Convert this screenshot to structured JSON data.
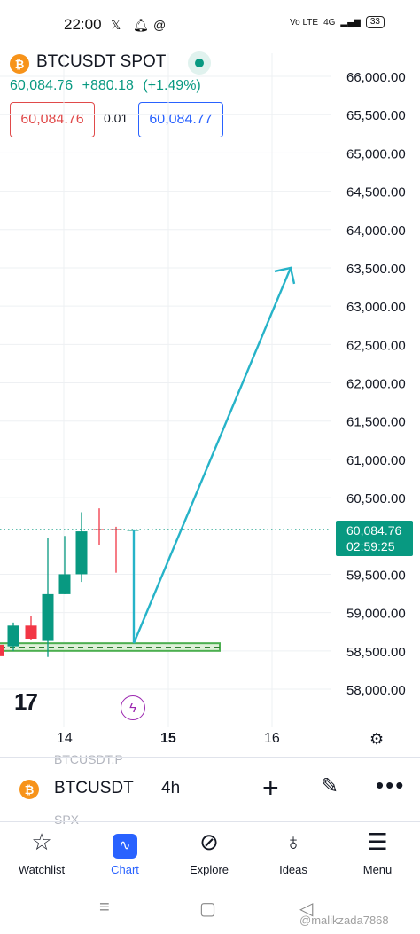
{
  "status_bar": {
    "time": "22:00",
    "network_label": "4G",
    "volte_label": "Vo LTE",
    "battery": "33",
    "icons": [
      "x-logo-icon",
      "bell-icon",
      "threads-icon",
      "signal-icon"
    ]
  },
  "header": {
    "symbol_title": "BTCUSDT SPOT",
    "coin_glyph": "₿",
    "last_price": "60,084.76",
    "change": "+880.18",
    "change_pct": "(+1.49%)",
    "bid": "60,084.76",
    "spread": "0.01",
    "ask": "60,084.77"
  },
  "chart": {
    "current_price_label": "60,084.76",
    "countdown": "02:59:25",
    "tv_logo_text": "17",
    "x_ticks": [
      "14",
      "15",
      "16"
    ]
  },
  "chart_data": {
    "type": "candlestick",
    "y_ticks": [
      "66,000.00",
      "65,500.00",
      "65,000.00",
      "64,500.00",
      "64,000.00",
      "63,500.00",
      "63,000.00",
      "62,500.00",
      "62,000.00",
      "61,500.00",
      "61,000.00",
      "60,500.00",
      "59,500.00",
      "59,000.00",
      "58,500.00",
      "58,000.00"
    ],
    "ylim": [
      57850,
      66150
    ],
    "x_ticks": [
      "14",
      "15",
      "16"
    ],
    "candles": [
      {
        "open": 58580,
        "high": 58700,
        "low": 58380,
        "close": 58430
      },
      {
        "open": 58560,
        "high": 58870,
        "low": 58500,
        "close": 58830
      },
      {
        "open": 58830,
        "high": 58950,
        "low": 58640,
        "close": 58660
      },
      {
        "open": 58630,
        "high": 59970,
        "low": 58420,
        "close": 59240
      },
      {
        "open": 59240,
        "high": 60000,
        "low": 59240,
        "close": 59500
      },
      {
        "open": 59500,
        "high": 60310,
        "low": 59400,
        "close": 60060
      },
      {
        "open": 60090,
        "high": 60360,
        "low": 59880,
        "close": 60080
      },
      {
        "open": 60090,
        "high": 60120,
        "low": 59520,
        "close": 60080
      },
      {
        "open": 60084,
        "high": 60084,
        "low": 60084,
        "close": 60084
      }
    ],
    "current_price": 60084.76,
    "support_zone": [
      58500,
      58600
    ],
    "projection_arrow": {
      "from": 58600,
      "to": 63500
    },
    "colors": {
      "up": "#089981",
      "down": "#f23645",
      "arrow": "#26b3c8",
      "zone_border": "#4caf50",
      "zone_fill": "#dff0da"
    }
  },
  "toolbar": {
    "symbol": "BTCUSDT",
    "interval": "4h",
    "ghost_top": "BTCUSDT.P",
    "ghost_bottom": "SPX"
  },
  "bottom_nav": [
    {
      "label": "Watchlist",
      "icon": "star-icon"
    },
    {
      "label": "Chart",
      "icon": "chart-icon",
      "active": true
    },
    {
      "label": "Explore",
      "icon": "compass-icon"
    },
    {
      "label": "Ideas",
      "icon": "lightbulb-icon"
    },
    {
      "label": "Menu",
      "icon": "menu-icon"
    }
  ],
  "watermark": "@malikzada7868"
}
